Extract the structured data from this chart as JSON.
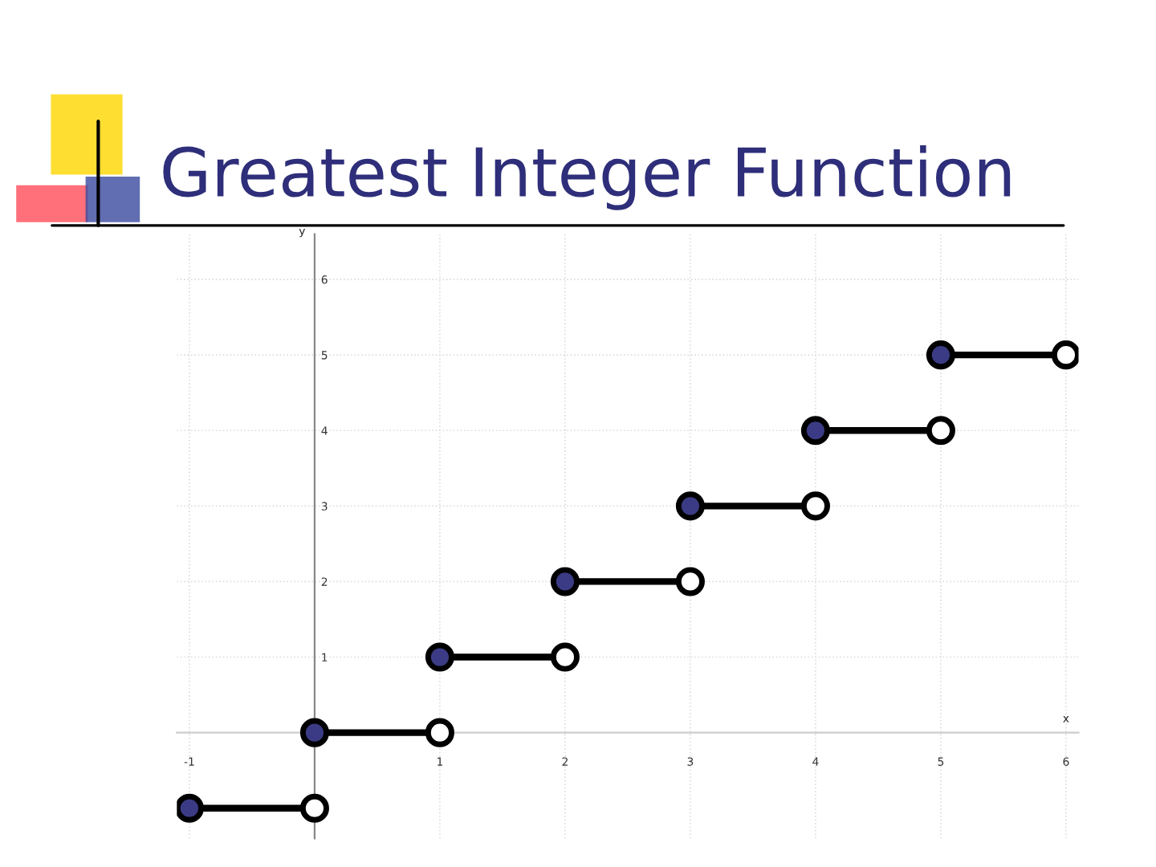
{
  "chart_data": {
    "type": "line",
    "title": "Greatest Integer Function",
    "xlabel": "x",
    "ylabel": "y",
    "xlim": [
      -1.1,
      6.1
    ],
    "ylim": [
      -1.4,
      6.6
    ],
    "xticks": [
      -1,
      1,
      2,
      3,
      4,
      5,
      6
    ],
    "yticks": [
      1,
      2,
      3,
      4,
      5,
      6
    ],
    "grid": true,
    "legend": false,
    "series": [
      {
        "color": "#000000",
        "x": [
          -1,
          0
        ],
        "values": [
          -1,
          -1
        ]
      },
      {
        "color": "#000000",
        "x": [
          0,
          1
        ],
        "values": [
          0,
          0
        ]
      },
      {
        "color": "#000000",
        "x": [
          1,
          2
        ],
        "values": [
          1,
          1
        ]
      },
      {
        "color": "#000000",
        "x": [
          2,
          3
        ],
        "values": [
          2,
          2
        ]
      },
      {
        "color": "#000000",
        "x": [
          3,
          4
        ],
        "values": [
          3,
          3
        ]
      },
      {
        "color": "#000000",
        "x": [
          4,
          5
        ],
        "values": [
          4,
          4
        ]
      },
      {
        "color": "#000000",
        "x": [
          5,
          6
        ],
        "values": [
          5,
          5
        ]
      },
      {
        "type": "scatter",
        "color": "#3b3b85",
        "marker": "circle",
        "x": [
          -1,
          0,
          1,
          2,
          3,
          4,
          5
        ],
        "values": [
          -1,
          0,
          1,
          2,
          3,
          4,
          5
        ]
      },
      {
        "type": "scatter",
        "color": "#ffffff",
        "marker": "circle",
        "x": [
          0,
          1,
          2,
          3,
          4,
          5,
          6
        ],
        "values": [
          -1,
          0,
          1,
          2,
          3,
          4,
          5
        ]
      }
    ]
  }
}
